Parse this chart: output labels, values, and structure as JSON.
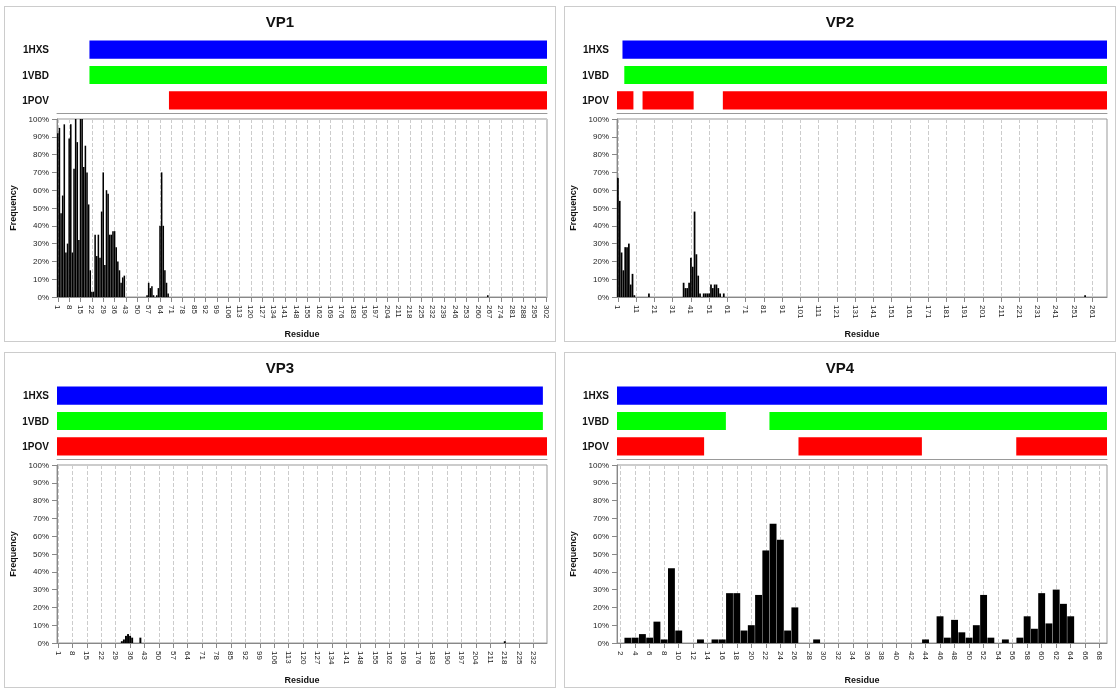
{
  "chart_data": [
    {
      "type": "bar",
      "title": "VP1",
      "orientation": "horizontal",
      "categories": [
        "1HXS",
        "1VBD",
        "1POV"
      ],
      "tick_labels": "y",
      "xlim": [
        0.5,
        302.5
      ],
      "series": [
        {
          "colors": [
            "#0000ff",
            "#00ff00",
            "#ff0000"
          ],
          "values": [
            282,
            282,
            233
          ],
          "base": [
            20.5,
            20.5,
            69.5
          ]
        }
      ]
    },
    {
      "type": "bar",
      "xlabel": "Residue",
      "ylabel": "Frequency",
      "color": "#000000",
      "grid": "x",
      "xlim": [
        0.5,
        302.5
      ],
      "ylim": [
        0,
        100
      ],
      "xticks": [
        1,
        8,
        15,
        22,
        29,
        36,
        43,
        50,
        57,
        64,
        71,
        78,
        85,
        92,
        99,
        106,
        113,
        120,
        127,
        134,
        141,
        148,
        155,
        162,
        169,
        176,
        183,
        190,
        197,
        204,
        211,
        218,
        225,
        232,
        239,
        246,
        253,
        260,
        267,
        274,
        281,
        288,
        295,
        302
      ],
      "yticks": [
        {
          "value": 0,
          "label": "0%"
        },
        {
          "value": 10,
          "label": "10%"
        },
        {
          "value": 20,
          "label": "20%"
        },
        {
          "value": 30,
          "label": "30%"
        },
        {
          "value": 40,
          "label": "40%"
        },
        {
          "value": 50,
          "label": "50%"
        },
        {
          "value": 60,
          "label": "60%"
        },
        {
          "value": 70,
          "label": "70%"
        },
        {
          "value": 80,
          "label": "80%"
        },
        {
          "value": 90,
          "label": "90%"
        },
        {
          "value": 100,
          "label": "100%"
        }
      ],
      "x": [
        1,
        2,
        3,
        4,
        5,
        6,
        7,
        8,
        9,
        10,
        11,
        12,
        13,
        14,
        15,
        16,
        17,
        18,
        19,
        20,
        21,
        22,
        23,
        24,
        25,
        26,
        27,
        28,
        29,
        30,
        31,
        32,
        33,
        34,
        35,
        36,
        37,
        38,
        39,
        40,
        41,
        42,
        56,
        57,
        58,
        59,
        60,
        62,
        63,
        64,
        65,
        66,
        67,
        68,
        69,
        266
      ],
      "values": [
        92,
        95,
        47,
        57,
        97,
        25,
        30,
        89,
        97,
        25,
        72,
        100,
        87,
        32,
        100,
        100,
        73,
        85,
        70,
        52,
        15,
        3,
        3,
        35,
        23,
        35,
        22,
        48,
        70,
        18,
        60,
        58,
        35,
        35,
        37,
        37,
        28,
        20,
        15,
        8,
        11,
        12,
        1,
        8,
        5,
        6,
        1,
        1,
        5,
        40,
        70,
        40,
        15,
        8,
        2,
        1
      ]
    },
    {
      "type": "bar",
      "title": "VP2",
      "orientation": "horizontal",
      "categories": [
        "1HXS",
        "1VBD",
        "1POV"
      ],
      "tick_labels": "y",
      "xlim": [
        0.5,
        269
      ],
      "series": [
        {
          "colors": [
            "#0000ff",
            "#00ff00",
            "#ff0000"
          ],
          "values": [
            265.5,
            264.5,
            9
          ],
          "base": [
            3.5,
            4.5,
            0.5
          ]
        },
        {
          "colors": [
            null,
            null,
            "#ff0000"
          ],
          "values": [
            null,
            null,
            28
          ],
          "base": [
            null,
            null,
            14.5
          ]
        },
        {
          "colors": [
            null,
            null,
            "#ff0000"
          ],
          "values": [
            null,
            null,
            210.5
          ],
          "base": [
            null,
            null,
            58.5
          ]
        }
      ]
    },
    {
      "type": "bar",
      "xlabel": "Residue",
      "ylabel": "Frequency",
      "color": "#000000",
      "grid": "x",
      "xlim": [
        0.5,
        269
      ],
      "ylim": [
        0,
        100
      ],
      "xticks": [
        1,
        11,
        21,
        31,
        41,
        51,
        61,
        71,
        81,
        91,
        101,
        111,
        121,
        131,
        141,
        151,
        161,
        171,
        181,
        191,
        201,
        211,
        221,
        231,
        241,
        251,
        261
      ],
      "yticks": [
        {
          "value": 0,
          "label": "0%"
        },
        {
          "value": 10,
          "label": "10%"
        },
        {
          "value": 20,
          "label": "20%"
        },
        {
          "value": 30,
          "label": "30%"
        },
        {
          "value": 40,
          "label": "40%"
        },
        {
          "value": 50,
          "label": "50%"
        },
        {
          "value": 60,
          "label": "60%"
        },
        {
          "value": 70,
          "label": "70%"
        },
        {
          "value": 80,
          "label": "80%"
        },
        {
          "value": 90,
          "label": "90%"
        },
        {
          "value": 100,
          "label": "100%"
        }
      ],
      "x": [
        1,
        2,
        3,
        4,
        5,
        6,
        7,
        8,
        9,
        10,
        18,
        37,
        38,
        39,
        40,
        41,
        42,
        43,
        44,
        45,
        46,
        48,
        49,
        50,
        51,
        52,
        53,
        54,
        55,
        56,
        57,
        59,
        257
      ],
      "values": [
        67,
        54,
        25,
        15,
        28,
        28,
        30,
        7,
        13,
        1,
        2,
        8,
        5,
        5,
        8,
        22,
        17,
        48,
        24,
        12,
        2,
        2,
        2,
        2,
        2,
        7,
        5,
        7,
        7,
        5,
        2,
        2,
        1
      ]
    },
    {
      "type": "bar",
      "title": "VP3",
      "orientation": "horizontal",
      "categories": [
        "1HXS",
        "1VBD",
        "1POV"
      ],
      "tick_labels": "y",
      "xlim": [
        0.5,
        238.5
      ],
      "series": [
        {
          "colors": [
            "#0000ff",
            "#00ff00",
            "#ff0000"
          ],
          "values": [
            236,
            236,
            238
          ],
          "base": [
            0.5,
            0.5,
            0.5
          ]
        }
      ]
    },
    {
      "type": "bar",
      "xlabel": "Residue",
      "ylabel": "Frequency",
      "color": "#000000",
      "grid": "x",
      "xlim": [
        0.5,
        238.5
      ],
      "ylim": [
        0,
        100
      ],
      "xticks": [
        1,
        8,
        15,
        22,
        29,
        36,
        43,
        50,
        57,
        64,
        71,
        78,
        85,
        92,
        99,
        106,
        113,
        120,
        127,
        134,
        141,
        148,
        155,
        162,
        169,
        176,
        183,
        190,
        197,
        204,
        211,
        218,
        225,
        232
      ],
      "yticks": [
        {
          "value": 0,
          "label": "0%"
        },
        {
          "value": 10,
          "label": "10%"
        },
        {
          "value": 20,
          "label": "20%"
        },
        {
          "value": 30,
          "label": "30%"
        },
        {
          "value": 40,
          "label": "40%"
        },
        {
          "value": 50,
          "label": "50%"
        },
        {
          "value": 60,
          "label": "60%"
        },
        {
          "value": 70,
          "label": "70%"
        },
        {
          "value": 80,
          "label": "80%"
        },
        {
          "value": 90,
          "label": "90%"
        },
        {
          "value": 100,
          "label": "100%"
        }
      ],
      "x": [
        32,
        33,
        34,
        35,
        36,
        37,
        41,
        218
      ],
      "values": [
        1,
        2,
        4,
        5,
        4,
        3,
        3,
        1
      ]
    },
    {
      "type": "bar",
      "title": "VP4",
      "orientation": "horizontal",
      "categories": [
        "1HXS",
        "1VBD",
        "1POV"
      ],
      "tick_labels": "y",
      "xlim": [
        1.5,
        69
      ],
      "series": [
        {
          "colors": [
            "#0000ff",
            "#00ff00",
            "#ff0000"
          ],
          "values": [
            67.5,
            15,
            12
          ],
          "base": [
            1.5,
            1.5,
            1.5
          ]
        },
        {
          "colors": [
            null,
            "#00ff00",
            "#ff0000"
          ],
          "values": [
            null,
            46.5,
            17
          ],
          "base": [
            null,
            22.5,
            26.5
          ]
        },
        {
          "colors": [
            null,
            null,
            "#ff0000"
          ],
          "values": [
            null,
            null,
            12.5
          ],
          "base": [
            null,
            null,
            56.5
          ]
        }
      ]
    },
    {
      "type": "bar",
      "xlabel": "Residue",
      "ylabel": "Frequency",
      "color": "#000000",
      "grid": "x",
      "xlim": [
        1.5,
        69
      ],
      "ylim": [
        0,
        100
      ],
      "xticks": [
        2,
        4,
        6,
        8,
        10,
        12,
        14,
        16,
        18,
        20,
        22,
        24,
        26,
        28,
        30,
        32,
        34,
        36,
        38,
        40,
        42,
        44,
        46,
        48,
        50,
        52,
        54,
        56,
        58,
        60,
        62,
        64,
        66,
        68
      ],
      "yticks": [
        {
          "value": 0,
          "label": "0%"
        },
        {
          "value": 10,
          "label": "10%"
        },
        {
          "value": 20,
          "label": "20%"
        },
        {
          "value": 30,
          "label": "30%"
        },
        {
          "value": 40,
          "label": "40%"
        },
        {
          "value": 50,
          "label": "50%"
        },
        {
          "value": 60,
          "label": "60%"
        },
        {
          "value": 70,
          "label": "70%"
        },
        {
          "value": 80,
          "label": "80%"
        },
        {
          "value": 90,
          "label": "90%"
        },
        {
          "value": 100,
          "label": "100%"
        }
      ],
      "x": [
        3,
        4,
        5,
        6,
        7,
        8,
        9,
        10,
        13,
        15,
        16,
        17,
        18,
        19,
        20,
        21,
        22,
        23,
        24,
        25,
        26,
        29,
        44,
        46,
        47,
        48,
        49,
        50,
        51,
        52,
        53,
        55,
        57,
        58,
        59,
        60,
        61,
        62,
        63,
        64
      ],
      "values": [
        3,
        3,
        5,
        3,
        12,
        2,
        42,
        7,
        2,
        2,
        2,
        28,
        28,
        7,
        10,
        27,
        52,
        67,
        58,
        7,
        20,
        2,
        2,
        15,
        3,
        13,
        6,
        3,
        10,
        27,
        3,
        2,
        3,
        15,
        8,
        28,
        11,
        30,
        22,
        15
      ]
    }
  ]
}
